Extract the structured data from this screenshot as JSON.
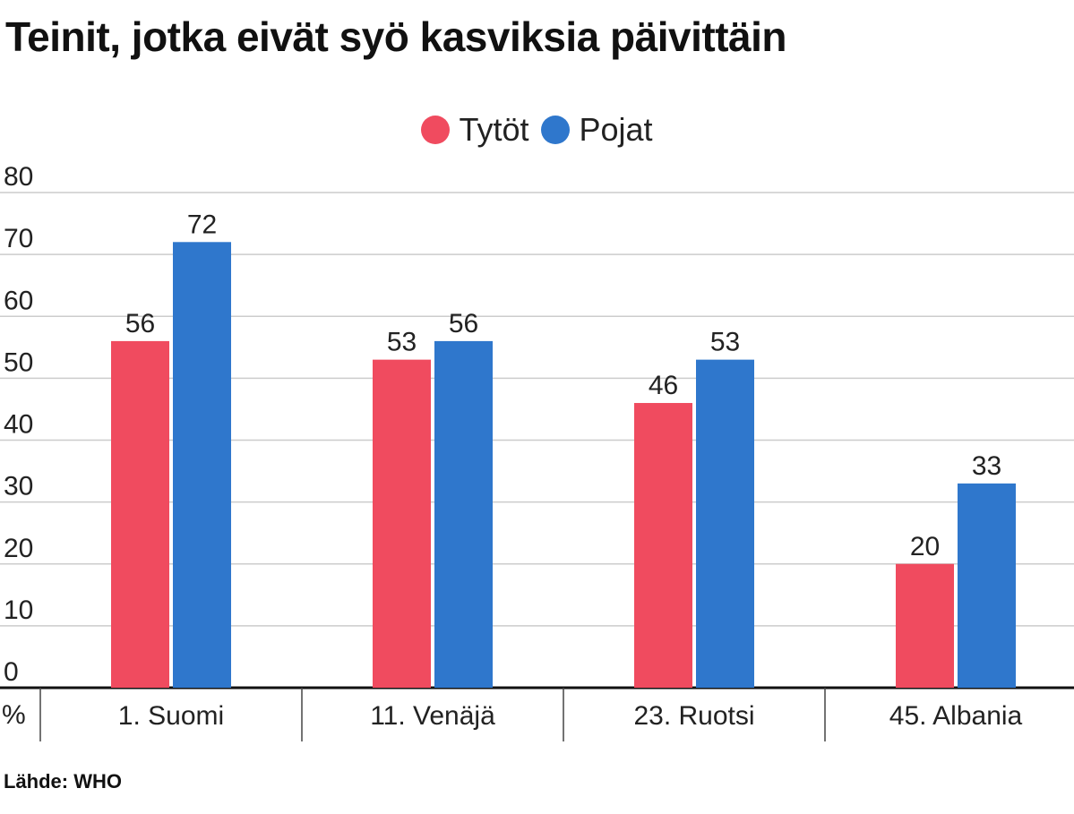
{
  "title": "Teinit, jotka eivät syö kasviksia päivittäin",
  "source": "Lähde: WHO",
  "colors": {
    "Tytöt": "#f04b5f",
    "Pojat": "#2f77cc",
    "grid": "#cccccc",
    "axis": "#111111"
  },
  "chart_data": {
    "type": "bar",
    "categories": [
      "1. Suomi",
      "11. Venäjä",
      "23. Ruotsi",
      "45. Albania"
    ],
    "series": [
      {
        "name": "Tytöt",
        "values": [
          56,
          53,
          46,
          20
        ]
      },
      {
        "name": "Pojat",
        "values": [
          72,
          56,
          53,
          33
        ]
      }
    ],
    "ylabel": "%",
    "ylim": [
      0,
      80
    ],
    "yticks": [
      0,
      10,
      20,
      30,
      40,
      50,
      60,
      70,
      80
    ],
    "grid": true,
    "legend_position": "top-center",
    "data_labels": true
  }
}
